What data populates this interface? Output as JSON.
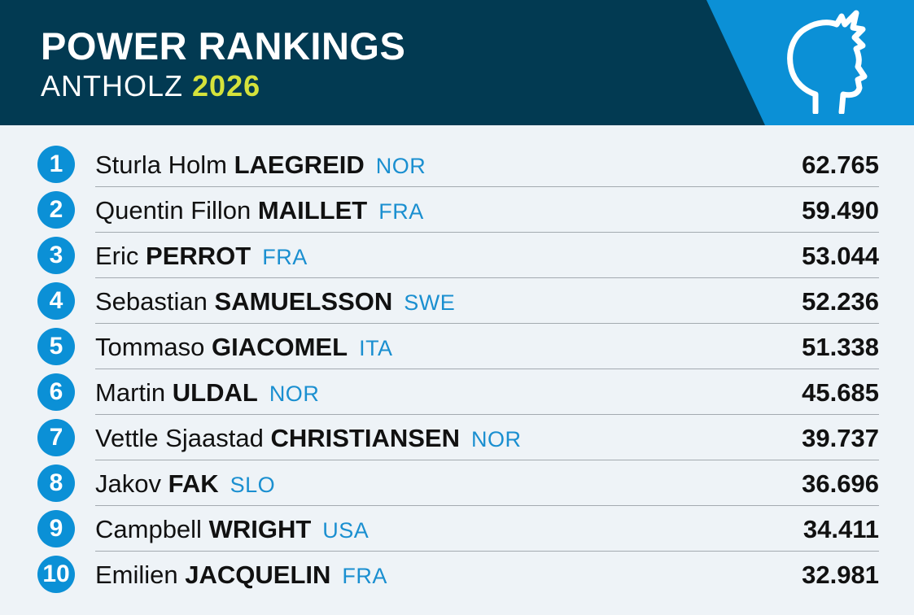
{
  "header": {
    "title": "POWER RANKINGS",
    "subtitle": "ANTHOLZ",
    "year": "2026",
    "logo_icon": "head-silhouette-icon"
  },
  "colors": {
    "header_bg": "#023a52",
    "accent_blue": "#0b90d6",
    "year_yellow": "#d5e23b",
    "nation_blue": "#1a8fd0",
    "page_bg": "#eef3f7"
  },
  "rankings": [
    {
      "rank": "1",
      "first": "Sturla Holm",
      "last": "LAEGREID",
      "nation": "NOR",
      "score": "62.765"
    },
    {
      "rank": "2",
      "first": "Quentin Fillon",
      "last": "MAILLET",
      "nation": "FRA",
      "score": "59.490"
    },
    {
      "rank": "3",
      "first": "Eric",
      "last": "PERROT",
      "nation": "FRA",
      "score": "53.044"
    },
    {
      "rank": "4",
      "first": "Sebastian",
      "last": "SAMUELSSON",
      "nation": "SWE",
      "score": "52.236"
    },
    {
      "rank": "5",
      "first": "Tommaso",
      "last": "GIACOMEL",
      "nation": "ITA",
      "score": "51.338"
    },
    {
      "rank": "6",
      "first": "Martin",
      "last": "ULDAL",
      "nation": "NOR",
      "score": "45.685"
    },
    {
      "rank": "7",
      "first": "Vettle Sjaastad",
      "last": "CHRISTIANSEN",
      "nation": "NOR",
      "score": "39.737"
    },
    {
      "rank": "8",
      "first": "Jakov",
      "last": "FAK",
      "nation": "SLO",
      "score": "36.696"
    },
    {
      "rank": "9",
      "first": "Campbell",
      "last": "WRIGHT",
      "nation": "USA",
      "score": "34.411"
    },
    {
      "rank": "10",
      "first": "Emilien",
      "last": "JACQUELIN",
      "nation": "FRA",
      "score": "32.981"
    }
  ]
}
